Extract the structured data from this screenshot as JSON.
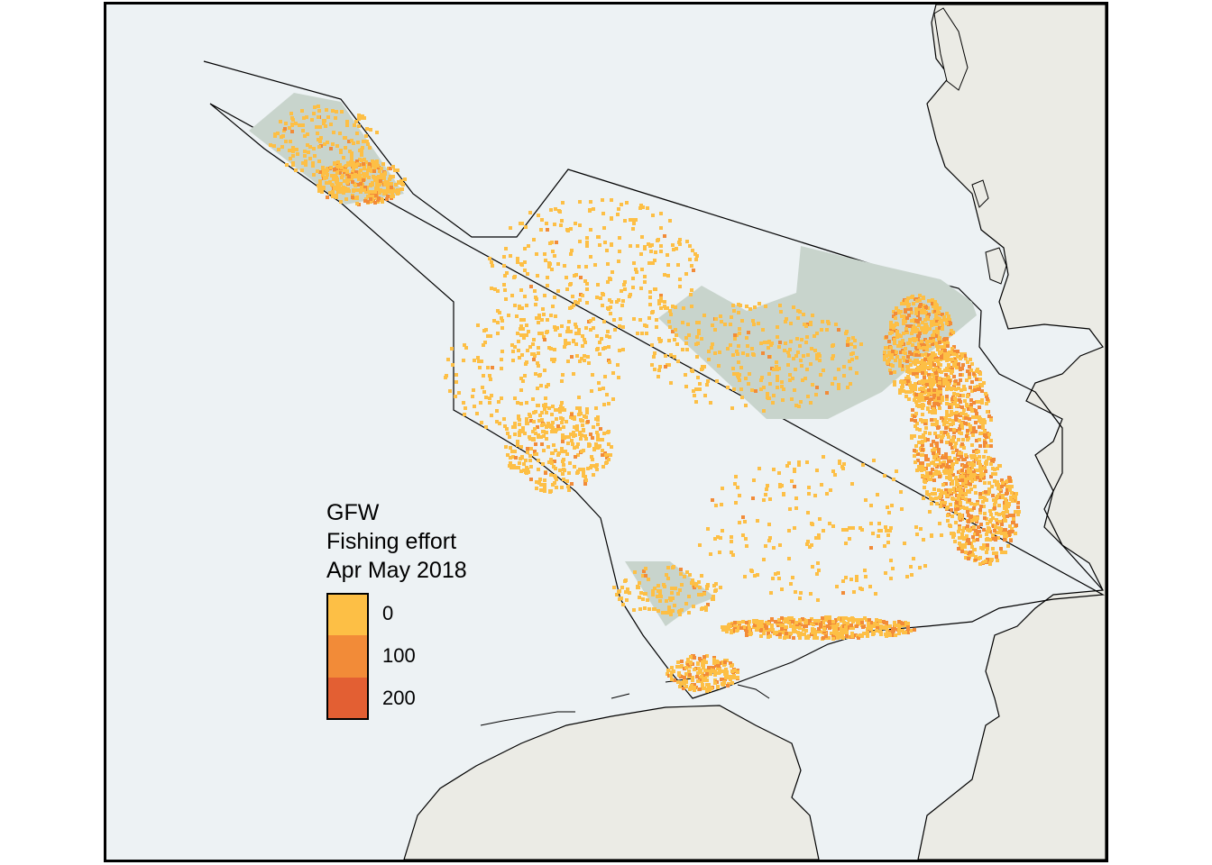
{
  "legend": {
    "title_lines": [
      "GFW",
      "Fishing effort",
      "Apr May 2018"
    ],
    "keys": [
      {
        "label": "0",
        "color": "#fdbf45"
      },
      {
        "label": "100",
        "color": "#f28b38"
      },
      {
        "label": "200",
        "color": "#e35f33"
      }
    ]
  },
  "colors": {
    "sea": "#edf2f4",
    "land": "#ebebe5",
    "protected_area": "#c8d4cc",
    "coastline": "#000000"
  }
}
